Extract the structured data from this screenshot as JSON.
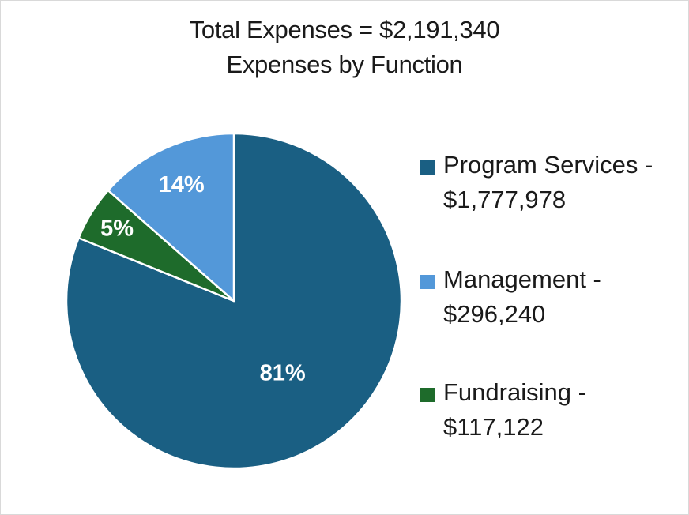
{
  "chart_data": {
    "type": "pie",
    "title": "Total Expenses = $2,191,340",
    "subtitle": "Expenses by Function",
    "slices": [
      {
        "label_line1": "Program Services -",
        "label_line2": "$1,777,978",
        "value": 1777978,
        "percent_label": "81%",
        "color": "#1a5f83"
      },
      {
        "label_line1": "Fundraising -",
        "label_line2": "$117,122",
        "value": 117122,
        "percent_label": "5%",
        "color": "#1e6b2b"
      },
      {
        "label_line1": "Management -",
        "label_line2": "$296,240",
        "value": 296240,
        "percent_label": "14%",
        "color": "#5398d9"
      }
    ],
    "legend_position": "right",
    "legend_order": [
      0,
      2,
      1
    ]
  }
}
